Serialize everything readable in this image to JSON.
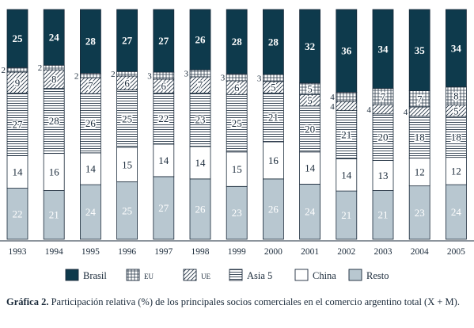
{
  "chart_data": {
    "type": "bar",
    "stacked": true,
    "normalized_100": true,
    "categories": [
      "1993",
      "1994",
      "1995",
      "1996",
      "1997",
      "1998",
      "1999",
      "2000",
      "2001",
      "2002",
      "2003",
      "2004",
      "2005"
    ],
    "series": [
      {
        "name": "Resto",
        "values": [
          22,
          21,
          24,
          25,
          27,
          26,
          23,
          26,
          24,
          21,
          21,
          23,
          24
        ],
        "fill": "solid",
        "color": "#b8c7d0",
        "label_color": "#ffffff"
      },
      {
        "name": "China",
        "values": [
          14,
          16,
          14,
          15,
          14,
          14,
          15,
          16,
          14,
          14,
          13,
          12,
          12
        ],
        "fill": "solid",
        "color": "#ffffff",
        "label_color": "#1a2a3a"
      },
      {
        "name": "Asia 5",
        "values": [
          27,
          28,
          26,
          25,
          22,
          23,
          25,
          21,
          20,
          21,
          20,
          18,
          18
        ],
        "fill": "hlines",
        "color": "#1a2a3a",
        "label_color": "#1a2a3a"
      },
      {
        "name": "UE",
        "values": [
          9,
          8,
          7,
          6,
          6,
          7,
          6,
          5,
          5,
          4,
          4,
          4,
          5
        ],
        "fill": "diag",
        "color": "#1a2a3a",
        "label_color": "#1a2a3a"
      },
      {
        "name": "EU",
        "values": [
          2,
          2,
          2,
          2,
          3,
          3,
          3,
          3,
          5,
          4,
          7,
          7,
          8
        ],
        "fill": "grid",
        "color": "#1a2a3a",
        "label_color": "#1a2a3a"
      },
      {
        "name": "Brasil",
        "values": [
          25,
          24,
          28,
          27,
          27,
          26,
          28,
          28,
          32,
          36,
          34,
          35,
          34
        ],
        "fill": "solid",
        "color": "#0e3a4c",
        "label_color": "#ffffff"
      }
    ],
    "legend_order": [
      "Brasil",
      "EU",
      "UE",
      "Asia 5",
      "China",
      "Resto"
    ],
    "legend_position": "bottom",
    "ylim": [
      0,
      100
    ],
    "title": "",
    "xlabel": "",
    "ylabel": ""
  },
  "caption": {
    "label": "Gráfica 2.",
    "text": "Participación relativa (%) de los principales socios comerciales en el comercio argentino total (X + M)."
  }
}
